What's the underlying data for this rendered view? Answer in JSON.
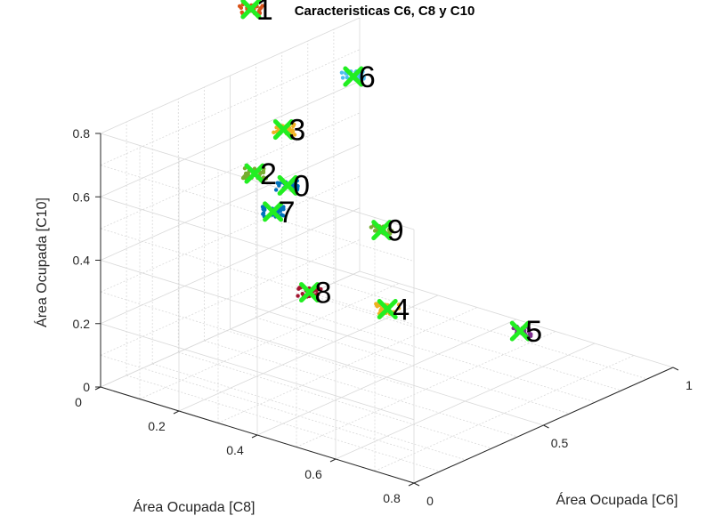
{
  "chart_data": {
    "type": "scatter",
    "title": "Caracteristicas C6, C8 y C10",
    "axes": {
      "x": {
        "label": "Área Ocupada [C6]",
        "lim": [
          0,
          1
        ],
        "ticks": [
          0,
          0.5,
          1
        ],
        "tick_labels": [
          "0",
          "0.5",
          "1"
        ]
      },
      "y": {
        "label": "Área Ocupada [C8]",
        "lim": [
          0,
          0.8
        ],
        "ticks": [
          0,
          0.2,
          0.4,
          0.6,
          0.8
        ],
        "tick_labels": [
          "0",
          "0.2",
          "0.4",
          "0.6",
          "0.8"
        ]
      },
      "z": {
        "label": "Área Ocupada [C10]",
        "lim": [
          0,
          0.8
        ],
        "ticks": [
          0,
          0.2,
          0.4,
          0.6,
          0.8
        ],
        "tick_labels": [
          "0",
          "0.2",
          "0.4",
          "0.6",
          "0.8"
        ]
      }
    },
    "grid": true,
    "centroid_marker": "x",
    "centroid_color": "#22ee22",
    "clusters": [
      {
        "label": "0",
        "color": "#0072BD",
        "x": 0.45,
        "y": 0.18,
        "z": 0.54
      },
      {
        "label": "1",
        "color": "#D95319",
        "x": 0.55,
        "y": 0.02,
        "z": 1.0
      },
      {
        "label": "2",
        "color": "#77AC30",
        "x": 0.02,
        "y": 0.38,
        "z": 0.81
      },
      {
        "label": "3",
        "color": "#EDB120",
        "x": 0.6,
        "y": 0.07,
        "z": 0.62
      },
      {
        "label": "4",
        "color": "#EDB120",
        "x": 0.2,
        "y": 0.6,
        "z": 0.4
      },
      {
        "label": "5",
        "color": "#7E2F8E",
        "x": 0.41,
        "y": 0.8,
        "z": 0.33
      },
      {
        "label": "6",
        "color": "#4DBEEE",
        "x": 0.9,
        "y": 0.05,
        "z": 0.67
      },
      {
        "label": "7",
        "color": "#0072BD",
        "x": 0.0,
        "y": 0.44,
        "z": 0.72
      },
      {
        "label": "8",
        "color": "#A2142F",
        "x": 0.05,
        "y": 0.5,
        "z": 0.47
      },
      {
        "label": "9",
        "color": "#77AC30",
        "x": 0.45,
        "y": 0.42,
        "z": 0.49
      }
    ]
  }
}
